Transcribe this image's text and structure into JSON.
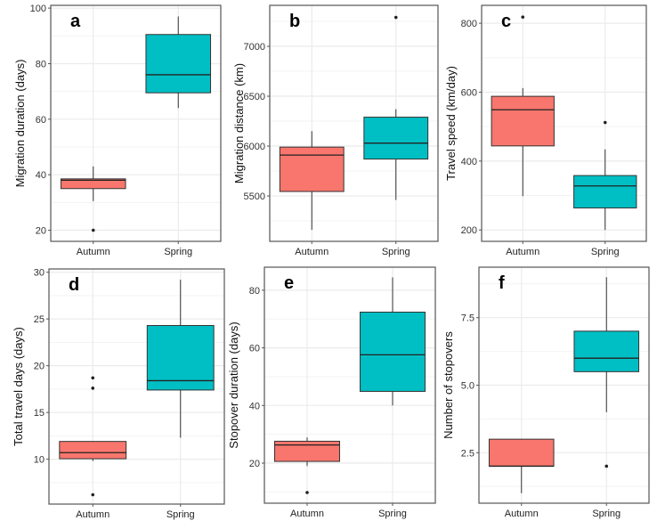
{
  "chart_data": [
    {
      "type": "boxplot",
      "panel_label": "a",
      "title": "",
      "xlabel": "",
      "ylabel": "Migration duration (days)",
      "categories": [
        "Autumn",
        "Spring"
      ],
      "yticks": [
        20,
        40,
        60,
        80,
        100
      ],
      "ylim": [
        16,
        101
      ],
      "grid": true,
      "boxes": [
        {
          "category": "Autumn",
          "whisker_low": 30.5,
          "q1": 35,
          "median": 38,
          "q3": 38.5,
          "whisker_high": 43,
          "outliers": [
            20
          ]
        },
        {
          "category": "Spring",
          "whisker_low": 64,
          "q1": 69.5,
          "median": 76,
          "q3": 90.5,
          "whisker_high": 97,
          "outliers": []
        }
      ]
    },
    {
      "type": "boxplot",
      "panel_label": "b",
      "title": "",
      "xlabel": "",
      "ylabel": "Migration distance (km)",
      "categories": [
        "Autumn",
        "Spring"
      ],
      "yticks": [
        5500,
        6000,
        6500,
        7000
      ],
      "ylim": [
        5045,
        7411
      ],
      "grid": true,
      "boxes": [
        {
          "category": "Autumn",
          "whisker_low": 5160,
          "q1": 5545,
          "median": 5910,
          "q3": 5990,
          "whisker_high": 6150,
          "outliers": []
        },
        {
          "category": "Spring",
          "whisker_low": 5460,
          "q1": 5870,
          "median": 6030,
          "q3": 6290,
          "whisker_high": 6370,
          "outliers": [
            7290
          ]
        }
      ]
    },
    {
      "type": "boxplot",
      "panel_label": "c",
      "title": "",
      "xlabel": "",
      "ylabel": "Travel speed (km/day)",
      "categories": [
        "Autumn",
        "Spring"
      ],
      "yticks": [
        200,
        400,
        600,
        800
      ],
      "ylim": [
        167,
        852
      ],
      "grid": true,
      "boxes": [
        {
          "category": "Autumn",
          "whisker_low": 298,
          "q1": 444,
          "median": 549,
          "q3": 588,
          "whisker_high": 612,
          "outliers": [
            818
          ]
        },
        {
          "category": "Spring",
          "whisker_low": 200,
          "q1": 264,
          "median": 328,
          "q3": 358,
          "whisker_high": 434,
          "outliers": [
            512
          ]
        }
      ]
    },
    {
      "type": "boxplot",
      "panel_label": "d",
      "title": "",
      "xlabel": "",
      "ylabel": "Total travel days (days)",
      "categories": [
        "Autumn",
        "Spring"
      ],
      "yticks": [
        10,
        15,
        20,
        25,
        30
      ],
      "ylim": [
        5.2,
        30.35
      ],
      "grid": true,
      "boxes": [
        {
          "category": "Autumn",
          "whisker_low": 9.8,
          "q1": 10.05,
          "median": 10.7,
          "q3": 11.9,
          "whisker_high": 11.9,
          "outliers": [
            18.7,
            17.6,
            6.2
          ]
        },
        {
          "category": "Spring",
          "whisker_low": 12.3,
          "q1": 17.4,
          "median": 18.4,
          "q3": 24.3,
          "whisker_high": 29.2,
          "outliers": []
        }
      ]
    },
    {
      "type": "boxplot",
      "panel_label": "e",
      "title": "",
      "xlabel": "",
      "ylabel": "Stopover duration (days)",
      "categories": [
        "Autumn",
        "Spring"
      ],
      "yticks": [
        20,
        40,
        60,
        80
      ],
      "ylim": [
        6.1,
        88
      ],
      "grid": true,
      "boxes": [
        {
          "category": "Autumn",
          "whisker_low": 19,
          "q1": 20.6,
          "median": 26.3,
          "q3": 27.6,
          "whisker_high": 28.9,
          "outliers": [
            9.8
          ]
        },
        {
          "category": "Spring",
          "whisker_low": 40,
          "q1": 44.9,
          "median": 57.6,
          "q3": 72.4,
          "whisker_high": 84.5,
          "outliers": []
        }
      ]
    },
    {
      "type": "boxplot",
      "panel_label": "f",
      "title": "",
      "xlabel": "",
      "ylabel": "Number of stopovers",
      "categories": [
        "Autumn",
        "Spring"
      ],
      "yticks": [
        2.5,
        5.0,
        7.5
      ],
      "ytick_labels": [
        "2.5",
        "5.0",
        "7.5"
      ],
      "ylim": [
        0.63,
        9.37
      ],
      "grid": true,
      "boxes": [
        {
          "category": "Autumn",
          "whisker_low": 1,
          "q1": 2,
          "median": 2,
          "q3": 3,
          "whisker_high": 3,
          "outliers": []
        },
        {
          "category": "Spring",
          "whisker_low": 4,
          "q1": 5.5,
          "median": 6,
          "q3": 7,
          "whisker_high": 9,
          "outliers": [
            2
          ]
        }
      ]
    }
  ],
  "colors": {
    "Autumn": "#F8766D",
    "Spring": "#00BFC4",
    "grid": "#EBEBEB",
    "border": "#555555",
    "line": "#333333"
  }
}
